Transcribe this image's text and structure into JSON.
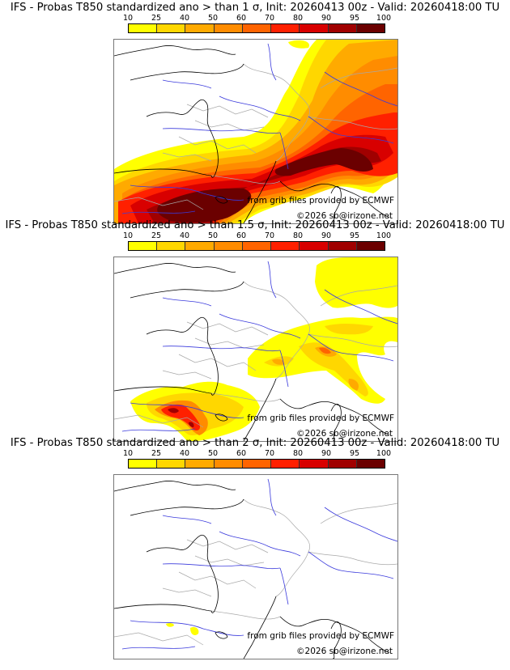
{
  "colorbar": {
    "ticks": [
      "10",
      "25",
      "40",
      "50",
      "60",
      "70",
      "80",
      "90",
      "95",
      "100"
    ],
    "colors": [
      "#ffff00",
      "#ffd700",
      "#ffaa00",
      "#ff8c00",
      "#ff6400",
      "#ff2000",
      "#d80000",
      "#a00000",
      "#6b0000"
    ]
  },
  "panels": [
    {
      "title": "IFS - Probas T850  standardized ano > than 1 σ, Init: 20260413 00z - Valid: 20260418:00 TU",
      "threshold_sigma": "1",
      "credit_source": "from grib files provided by ECMWF",
      "credit_copyright": "©2026 sb@irizone.net"
    },
    {
      "title": "IFS - Probas T850  standardized ano > than 1.5 σ, Init: 20260413 00z - Valid: 20260418:00 TU",
      "threshold_sigma": "1.5",
      "credit_source": "from grib files provided by ECMWF",
      "credit_copyright": "©2026 sb@irizone.net"
    },
    {
      "title": "IFS - Probas T850  standardized ano > than 2 σ, Init: 20260413 00z - Valid: 20260418:00 TU",
      "threshold_sigma": "2",
      "credit_source": "from grib files provided by ECMWF",
      "credit_copyright": "©2026 sb@irizone.net"
    }
  ],
  "colors": {
    "coast": "#000000",
    "river": "#3a3adc",
    "border": "#a8a8a8"
  }
}
